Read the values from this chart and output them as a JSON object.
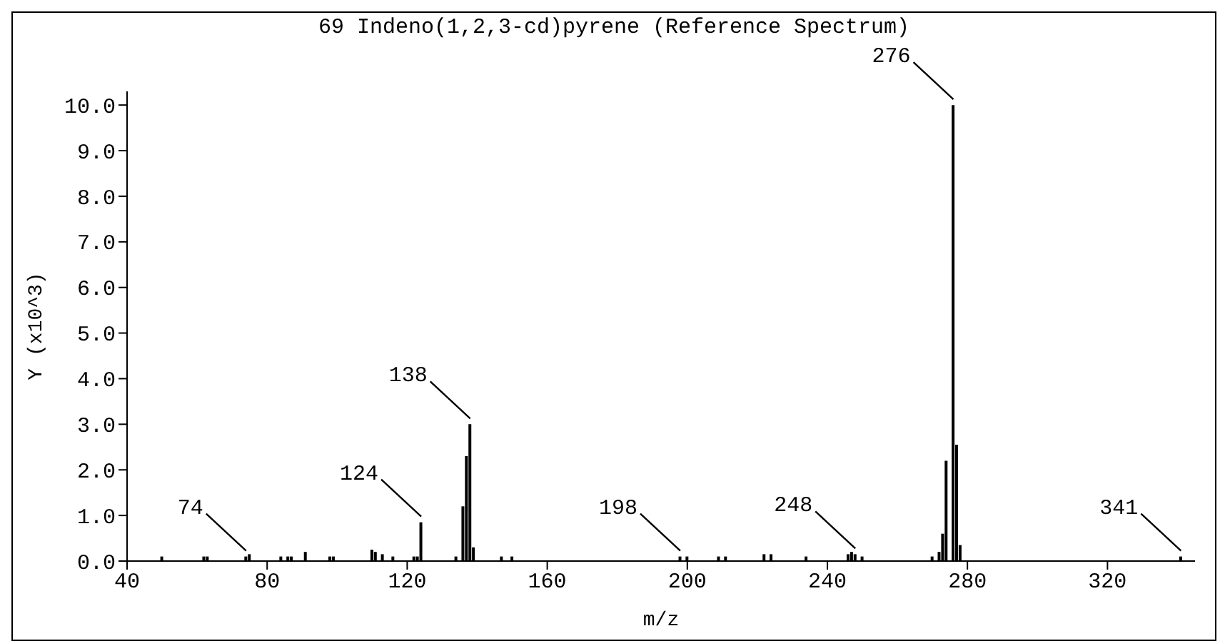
{
  "chart_data": {
    "type": "bar",
    "title": "69 Indeno(1,2,3-cd)pyrene (Reference Spectrum)",
    "xlabel": "m/z",
    "ylabel": "Y (x10^3)",
    "x": [
      50,
      62,
      63,
      74,
      75,
      84,
      86,
      87,
      91,
      98,
      99,
      110,
      111,
      113,
      116,
      122,
      123,
      124,
      134,
      136,
      137,
      138,
      139,
      147,
      150,
      198,
      200,
      209,
      211,
      222,
      224,
      234,
      246,
      247,
      248,
      250,
      270,
      272,
      273,
      274,
      276,
      277,
      278,
      341
    ],
    "values": [
      0.1,
      0.1,
      0.1,
      0.1,
      0.15,
      0.1,
      0.1,
      0.1,
      0.2,
      0.1,
      0.1,
      0.25,
      0.2,
      0.15,
      0.1,
      0.1,
      0.1,
      0.85,
      0.1,
      1.2,
      2.3,
      3.0,
      0.3,
      0.1,
      0.1,
      0.1,
      0.1,
      0.1,
      0.1,
      0.15,
      0.15,
      0.1,
      0.15,
      0.2,
      0.15,
      0.1,
      0.1,
      0.2,
      0.6,
      2.2,
      10.0,
      2.55,
      0.35,
      0.1
    ],
    "color": "#000000",
    "xlim": [
      40,
      345
    ],
    "xticks": [
      40,
      80,
      120,
      160,
      200,
      240,
      280,
      320
    ],
    "ylim": [
      0,
      10.3
    ],
    "yticks": [
      {
        "value": 0,
        "label": "0.0"
      },
      {
        "value": 1,
        "label": "1.0"
      },
      {
        "value": 2,
        "label": "2.0"
      },
      {
        "value": 3,
        "label": "3.0"
      },
      {
        "value": 4,
        "label": "4.0"
      },
      {
        "value": 5,
        "label": "5.0"
      },
      {
        "value": 6,
        "label": "6.0"
      },
      {
        "value": 7,
        "label": "7.0"
      },
      {
        "value": 8,
        "label": "8.0"
      },
      {
        "value": 9,
        "label": "9.0"
      },
      {
        "value": 10,
        "label": "10.0"
      }
    ],
    "annotations": [
      {
        "text": "74",
        "x": 74,
        "y": 0.1
      },
      {
        "text": "124",
        "x": 124,
        "y": 0.85
      },
      {
        "text": "138",
        "x": 138,
        "y": 3.0
      },
      {
        "text": "198",
        "x": 198,
        "y": 0.1
      },
      {
        "text": "248",
        "x": 248,
        "y": 0.15
      },
      {
        "text": "276",
        "x": 276,
        "y": 10.0
      },
      {
        "text": "341",
        "x": 341,
        "y": 0.1
      }
    ],
    "grid": false,
    "legend": false
  }
}
